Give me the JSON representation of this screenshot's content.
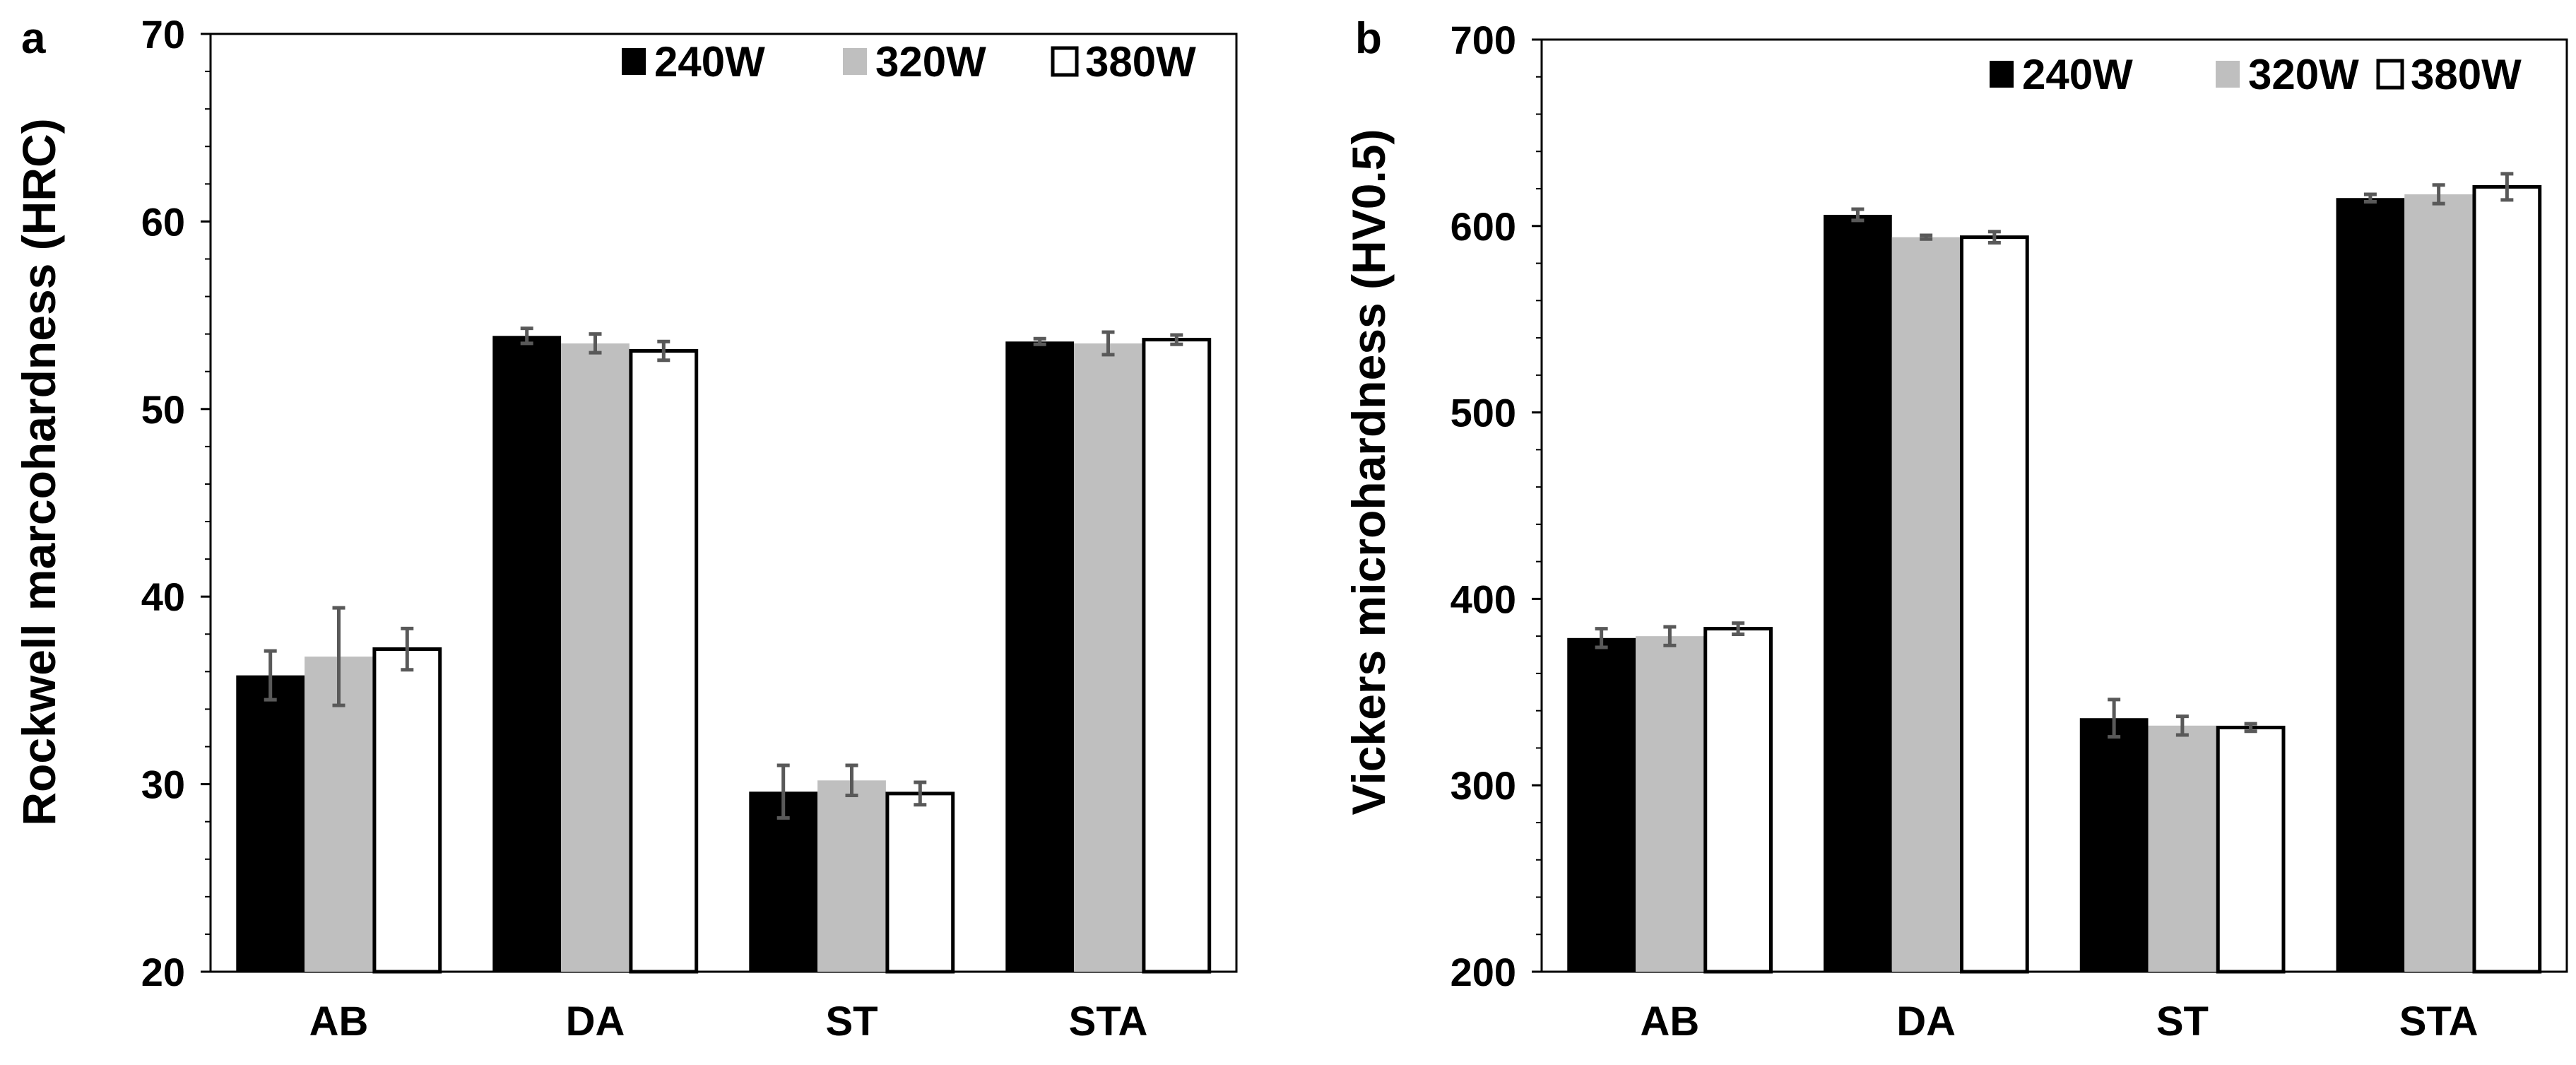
{
  "chart_data": [
    {
      "type": "bar",
      "panel_label": "a",
      "ylabel": "Rockwell marcohardness (HRC)",
      "xlabel": "",
      "ylim": [
        20,
        70
      ],
      "yticks": [
        20,
        30,
        40,
        50,
        60,
        70
      ],
      "categories": [
        "AB",
        "DA",
        "ST",
        "STA"
      ],
      "legend_position": "top-right",
      "series": [
        {
          "name": "240W",
          "color": "#000000",
          "values": [
            35.8,
            53.9,
            29.6,
            53.6
          ],
          "errors": [
            1.3,
            0.4,
            1.4,
            0.15
          ]
        },
        {
          "name": "320W",
          "color": "#bfbfbf",
          "values": [
            36.8,
            53.5,
            30.2,
            53.5
          ],
          "errors": [
            2.6,
            0.5,
            0.8,
            0.6
          ]
        },
        {
          "name": "380W",
          "color": "#ffffff",
          "values": [
            37.2,
            53.1,
            29.5,
            53.7
          ],
          "errors": [
            1.1,
            0.5,
            0.6,
            0.25
          ]
        }
      ]
    },
    {
      "type": "bar",
      "panel_label": "b",
      "ylabel": "Vickers microhardness (HV0.5)",
      "xlabel": "",
      "ylim": [
        200,
        700
      ],
      "yticks": [
        200,
        300,
        400,
        500,
        600,
        700
      ],
      "categories": [
        "AB",
        "DA",
        "ST",
        "STA"
      ],
      "legend_position": "top-right",
      "series": [
        {
          "name": "240W",
          "color": "#000000",
          "values": [
            379,
            606,
            336,
            615
          ],
          "errors": [
            5,
            3,
            10,
            2
          ]
        },
        {
          "name": "320W",
          "color": "#bfbfbf",
          "values": [
            380,
            594,
            332,
            617
          ],
          "errors": [
            5,
            1,
            5,
            5
          ]
        },
        {
          "name": "380W",
          "color": "#ffffff",
          "values": [
            384,
            594,
            331,
            621
          ],
          "errors": [
            3,
            3,
            2,
            7
          ]
        }
      ]
    }
  ]
}
